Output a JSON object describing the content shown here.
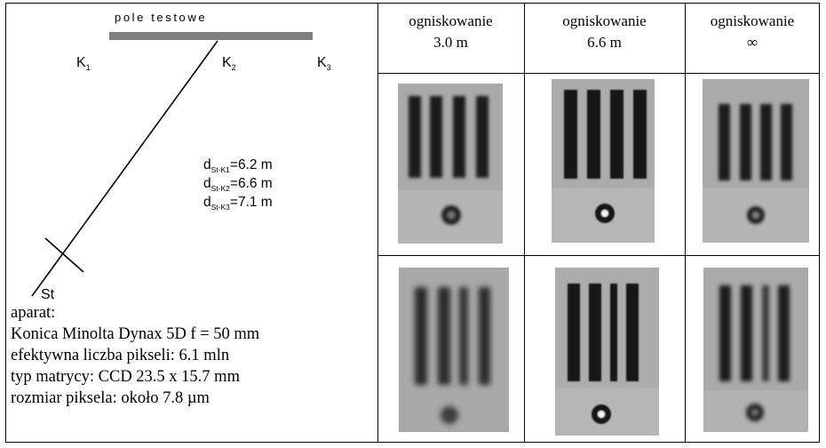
{
  "diagram": {
    "field_label": "pole testowe",
    "targets": [
      {
        "letter": "K",
        "sub": "1"
      },
      {
        "letter": "K",
        "sub": "2"
      },
      {
        "letter": "K",
        "sub": "3"
      }
    ],
    "station": "St",
    "distances": [
      {
        "prefix": "d",
        "sub": "St-K1",
        "value": "=6.2 m"
      },
      {
        "prefix": "d",
        "sub": "St-K2",
        "value": "=6.6 m"
      },
      {
        "prefix": "d",
        "sub": "St-K3",
        "value": "=7.1 m"
      }
    ]
  },
  "camera": {
    "heading": "aparat:",
    "lines": [
      "Konica Minolta Dynax 5D f = 50 mm",
      "efektywna liczba pikseli: 6.1 mln",
      "typ matrycy: CCD 23.5 x 15.7 mm",
      "rozmiar piksela: około 7.8 µm"
    ]
  },
  "columns": [
    {
      "line1": "ogniskowanie",
      "line2": "3.0 m"
    },
    {
      "line1": "ogniskowanie",
      "line2": "6.6 m"
    },
    {
      "line1": "ogniskowanie",
      "line2": "∞"
    }
  ],
  "colors": {
    "field_bar": "#808080",
    "photo_bg": "#a9a9a9",
    "bars": "#161616"
  }
}
